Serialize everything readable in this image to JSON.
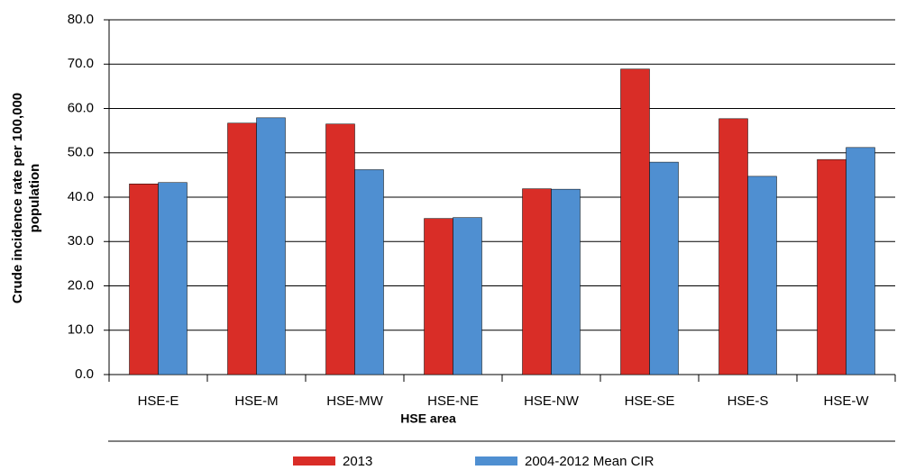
{
  "chart_data": {
    "type": "bar",
    "xlabel": "HSE area",
    "ylabel": [
      "Crude incidence rate per 100,000",
      "population"
    ],
    "categories": [
      "HSE-E",
      "HSE-M",
      "HSE-MW",
      "HSE-NE",
      "HSE-NW",
      "HSE-SE",
      "HSE-S",
      "HSE-W"
    ],
    "series": [
      {
        "name": "2013",
        "color": "#d92d27",
        "values": [
          43.0,
          56.7,
          56.5,
          35.2,
          41.9,
          68.9,
          57.7,
          48.5
        ]
      },
      {
        "name": "2004-2012 Mean CIR",
        "color": "#4f8fd1",
        "values": [
          43.3,
          57.9,
          46.2,
          35.4,
          41.8,
          47.9,
          44.7,
          51.2
        ]
      }
    ],
    "ylim": [
      0,
      80
    ],
    "yticks": [
      {
        "value": 0,
        "label": "0.0"
      },
      {
        "value": 10,
        "label": "10.0"
      },
      {
        "value": 20,
        "label": "20.0"
      },
      {
        "value": 30,
        "label": "30.0"
      },
      {
        "value": 40,
        "label": "40.0"
      },
      {
        "value": 50,
        "label": "50.0"
      },
      {
        "value": 60,
        "label": "60.0"
      },
      {
        "value": 70,
        "label": "70.0"
      },
      {
        "value": 80,
        "label": "80.0"
      }
    ],
    "grid": true
  }
}
